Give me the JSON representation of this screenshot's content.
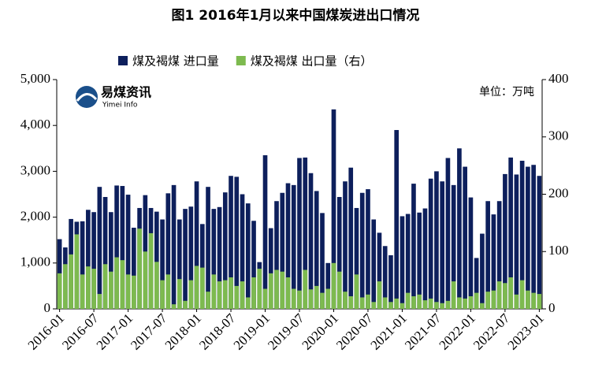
{
  "chart_data": {
    "type": "bar",
    "title": "图1 2016年1月以来中国煤炭进出口情况",
    "annotation": "单位：万吨",
    "logo": {
      "name": "易煤资讯",
      "subname": "Yimei Info"
    },
    "categories": [
      "2016-01",
      null,
      null,
      null,
      null,
      null,
      "2016-07",
      null,
      null,
      null,
      null,
      null,
      "2017-01",
      null,
      null,
      null,
      null,
      null,
      "2017-07",
      null,
      null,
      null,
      null,
      null,
      "2018-01",
      null,
      null,
      null,
      null,
      null,
      "2018-07",
      null,
      null,
      null,
      null,
      null,
      "2019-01",
      null,
      null,
      null,
      null,
      null,
      "2019-07",
      null,
      null,
      null,
      null,
      null,
      "2020-01",
      null,
      null,
      null,
      null,
      null,
      "2020-07",
      null,
      null,
      null,
      null,
      null,
      "2021-01",
      null,
      null,
      null,
      null,
      null,
      "2021-07",
      null,
      null,
      null,
      null,
      null,
      "2022-01",
      null,
      null,
      null,
      null,
      null,
      "2022-07",
      null,
      null,
      null,
      null,
      null,
      "2023-01"
    ],
    "series": [
      {
        "name": "煤及褐煤 进口量",
        "color": "#0d1f5c",
        "axis": "y",
        "values": [
          1520,
          1340,
          1960,
          1900,
          1910,
          2160,
          2110,
          2660,
          2440,
          2110,
          2690,
          2680,
          2490,
          1770,
          2200,
          2480,
          2200,
          2120,
          1950,
          2520,
          2700,
          1950,
          2180,
          2230,
          2780,
          1850,
          2660,
          2180,
          2220,
          2540,
          2900,
          2880,
          2500,
          2300,
          1920,
          1020,
          3350,
          1760,
          2350,
          2530,
          2740,
          2700,
          3290,
          3300,
          2960,
          2570,
          2090,
          1000,
          4350,
          2440,
          2780,
          3080,
          2200,
          2530,
          2610,
          1950,
          1660,
          1370,
          1170,
          3900,
          2020,
          2070,
          2730,
          2100,
          2190,
          2840,
          3000,
          2780,
          3290,
          2700,
          3500,
          3100,
          2430,
          1110,
          1640,
          2350,
          2060,
          2350,
          2940,
          3300,
          2930,
          3230,
          3100,
          3140,
          2900
        ]
      },
      {
        "name": "煤及褐煤 出口量（右）",
        "color": "#7dba4f",
        "axis": "y2",
        "values": [
          62,
          78,
          95,
          130,
          60,
          74,
          70,
          26,
          78,
          65,
          90,
          85,
          60,
          58,
          140,
          100,
          132,
          82,
          50,
          60,
          8,
          52,
          14,
          50,
          75,
          72,
          30,
          60,
          48,
          50,
          55,
          40,
          48,
          20,
          55,
          70,
          35,
          62,
          68,
          65,
          55,
          35,
          32,
          68,
          34,
          40,
          28,
          35,
          80,
          65,
          30,
          22,
          60,
          20,
          25,
          12,
          48,
          20,
          12,
          18,
          10,
          28,
          22,
          25,
          15,
          18,
          12,
          10,
          14,
          48,
          20,
          18,
          22,
          28,
          10,
          30,
          32,
          48,
          45,
          55,
          25,
          50,
          32,
          28,
          26
        ]
      }
    ],
    "ylim": [
      0,
      5000
    ],
    "yticks": [
      0,
      {
        "value": 1000,
        "label": "1,000"
      },
      {
        "value": 2000,
        "label": "2,000"
      },
      {
        "value": 3000,
        "label": "3,000"
      },
      {
        "value": 4000,
        "label": "4,000"
      },
      {
        "value": 5000,
        "label": "5,000"
      }
    ],
    "y2lim": [
      0,
      400
    ],
    "y2ticks": [
      0,
      100,
      200,
      300,
      400
    ],
    "legend": "top"
  }
}
